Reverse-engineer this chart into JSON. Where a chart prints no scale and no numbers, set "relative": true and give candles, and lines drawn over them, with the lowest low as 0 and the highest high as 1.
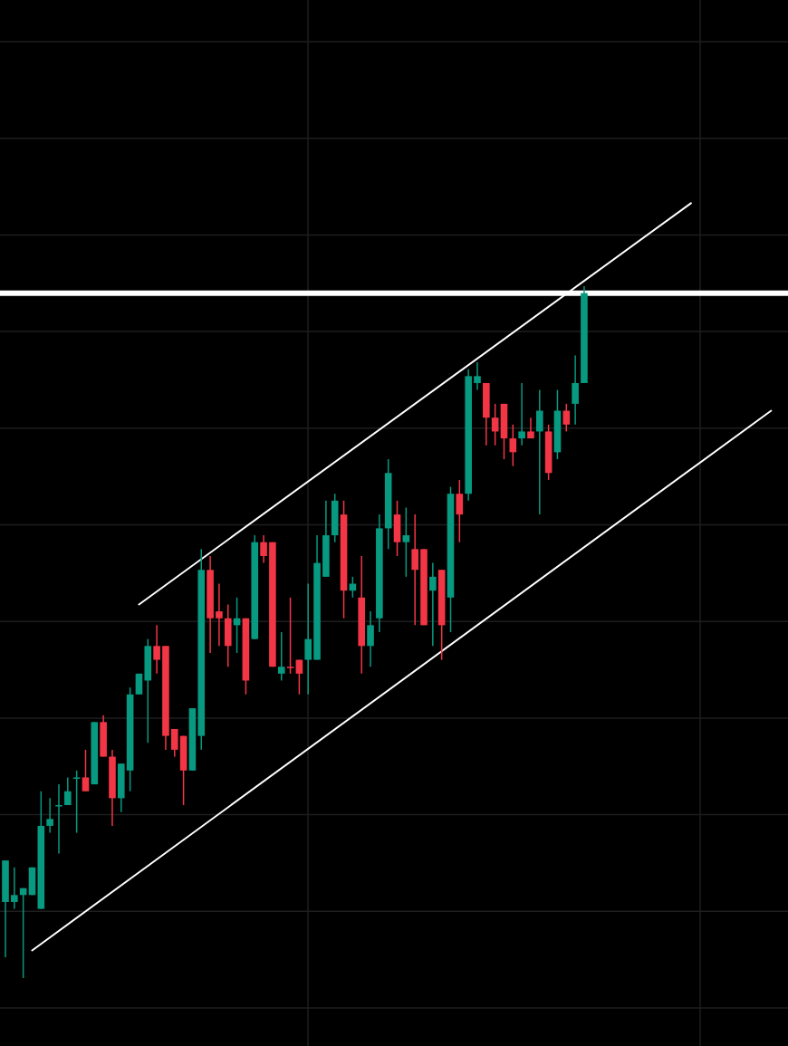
{
  "chart_data": {
    "type": "candlestick",
    "relative": true,
    "grid": true,
    "categories": [
      null,
      null,
      null,
      null,
      null,
      null,
      null,
      null,
      null,
      null,
      null,
      null,
      null,
      null,
      null,
      null,
      null,
      null,
      null,
      null,
      null,
      null,
      null,
      null,
      null,
      null,
      null,
      null,
      null,
      null,
      null,
      null,
      null,
      null,
      null,
      null,
      null,
      null,
      null,
      null,
      null,
      null,
      null,
      null,
      null,
      null,
      null,
      null,
      null,
      null,
      null,
      null,
      null,
      null,
      null,
      null,
      null,
      null,
      null,
      null,
      null,
      null,
      null,
      null,
      null,
      null,
      null,
      null,
      null,
      null,
      null,
      null,
      null,
      null,
      null,
      null,
      null,
      null,
      null,
      null,
      null,
      null,
      null,
      null,
      null,
      null,
      null
    ],
    "ohlc": [
      [
        0.11,
        0.17,
        0.03,
        0.17
      ],
      [
        0.11,
        0.16,
        0.1,
        0.12
      ],
      [
        0.12,
        0.13,
        0,
        0.13
      ],
      [
        0.12,
        0.16,
        0.12,
        0.16
      ],
      [
        0.1,
        0.27,
        0.1,
        0.22
      ],
      [
        0.22,
        0.26,
        0.21,
        0.23
      ],
      [
        0.25,
        0.28,
        0.18,
        0.25
      ],
      [
        0.25,
        0.29,
        0.25,
        0.27
      ],
      [
        0.29,
        0.3,
        0.21,
        0.29
      ],
      [
        0.29,
        0.33,
        0.27,
        0.27
      ],
      [
        0.28,
        0.37,
        0.28,
        0.37
      ],
      [
        0.37,
        0.38,
        0.32,
        0.32
      ],
      [
        0.32,
        0.33,
        0.22,
        0.26
      ],
      [
        0.26,
        0.31,
        0.24,
        0.31
      ],
      [
        0.3,
        0.42,
        0.27,
        0.41
      ],
      [
        0.41,
        0.44,
        0.41,
        0.44
      ],
      [
        0.43,
        0.49,
        0.34,
        0.48
      ],
      [
        0.48,
        0.51,
        0.44,
        0.46
      ],
      [
        0.48,
        0.48,
        0.33,
        0.35
      ],
      [
        0.36,
        0.36,
        0.32,
        0.33
      ],
      [
        0.35,
        0.35,
        0.25,
        0.3
      ],
      [
        0.3,
        0.39,
        0.3,
        0.39
      ],
      [
        0.35,
        0.62,
        0.33,
        0.59
      ],
      [
        0.59,
        0.61,
        0.47,
        0.52
      ],
      [
        0.53,
        0.57,
        0.48,
        0.52
      ],
      [
        0.52,
        0.54,
        0.45,
        0.48
      ],
      [
        0.51,
        0.55,
        0.47,
        0.52
      ],
      [
        0.52,
        0.52,
        0.41,
        0.43
      ],
      [
        0.49,
        0.64,
        0.49,
        0.63
      ],
      [
        0.63,
        0.64,
        0.6,
        0.61
      ],
      [
        0.63,
        0.63,
        0.45,
        0.45
      ],
      [
        0.44,
        0.5,
        0.43,
        0.45
      ],
      [
        0.45,
        0.55,
        0.44,
        0.45
      ],
      [
        0.46,
        0.46,
        0.41,
        0.44
      ],
      [
        0.46,
        0.57,
        0.41,
        0.49
      ],
      [
        0.46,
        0.64,
        0.46,
        0.6
      ],
      [
        0.58,
        0.69,
        0.58,
        0.64
      ],
      [
        0.64,
        0.7,
        0.63,
        0.69
      ],
      [
        0.67,
        0.69,
        0.52,
        0.56
      ],
      [
        0.56,
        0.58,
        0.55,
        0.57
      ],
      [
        0.55,
        0.61,
        0.44,
        0.48
      ],
      [
        0.48,
        0.53,
        0.45,
        0.51
      ],
      [
        0.52,
        0.67,
        0.5,
        0.65
      ],
      [
        0.65,
        0.75,
        0.62,
        0.73
      ],
      [
        0.67,
        0.69,
        0.61,
        0.63
      ],
      [
        0.63,
        0.68,
        0.58,
        0.64
      ],
      [
        0.62,
        0.67,
        0.51,
        0.59
      ],
      [
        0.62,
        0.62,
        0.51,
        0.51
      ],
      [
        0.56,
        0.6,
        0.48,
        0.58
      ],
      [
        0.59,
        0.59,
        0.46,
        0.51
      ],
      [
        0.55,
        0.71,
        0.5,
        0.7
      ],
      [
        0.7,
        0.72,
        0.63,
        0.67
      ],
      [
        0.7,
        0.88,
        0.69,
        0.87
      ],
      [
        0.86,
        0.89,
        0.85,
        0.87
      ],
      [
        0.86,
        0.86,
        0.77,
        0.81
      ],
      [
        0.81,
        0.83,
        0.77,
        0.79
      ],
      [
        0.83,
        0.83,
        0.75,
        0.78
      ],
      [
        0.78,
        0.8,
        0.74,
        0.76
      ],
      [
        0.78,
        0.86,
        0.77,
        0.79
      ],
      [
        0.79,
        0.81,
        0.78,
        0.78
      ],
      [
        0.79,
        0.85,
        0.67,
        0.82
      ],
      [
        0.79,
        0.8,
        0.72,
        0.73
      ],
      [
        0.76,
        0.85,
        0.75,
        0.82
      ],
      [
        0.82,
        0.83,
        0.79,
        0.8
      ],
      [
        0.83,
        0.9,
        0.8,
        0.86
      ],
      [
        0.86,
        1,
        0.86,
        0.99
      ],
      null,
      null,
      null,
      null,
      null,
      null,
      null,
      null,
      null,
      null,
      null,
      null,
      null,
      null,
      null,
      null,
      null,
      null,
      null,
      null,
      null
    ],
    "colors": [
      "#089981",
      "#089981",
      "#089981",
      "#089981",
      "#089981",
      "#089981",
      "#089981",
      "#089981",
      "#089981",
      "#f23645",
      "#089981",
      "#f23645",
      "#f23645",
      "#089981",
      "#089981",
      "#089981",
      "#089981",
      "#f23645",
      "#f23645",
      "#f23645",
      "#f23645",
      "#089981",
      "#089981",
      "#f23645",
      "#f23645",
      "#f23645",
      "#089981",
      "#f23645",
      "#089981",
      "#f23645",
      "#f23645",
      "#089981",
      "#f23645",
      "#f23645",
      "#089981",
      "#089981",
      "#089981",
      "#089981",
      "#f23645",
      "#089981",
      "#f23645",
      "#089981",
      "#089981",
      "#089981",
      "#f23645",
      "#089981",
      "#f23645",
      "#f23645",
      "#089981",
      "#f23645",
      "#089981",
      "#f23645",
      "#089981",
      "#089981",
      "#f23645",
      "#f23645",
      "#f23645",
      "#f23645",
      "#089981",
      "#f23645",
      "#089981",
      "#f23645",
      "#089981",
      "#f23645",
      "#089981",
      "#089981",
      null,
      null,
      null,
      null,
      null,
      null,
      null,
      null,
      null,
      null,
      null,
      null,
      null,
      null,
      null,
      null,
      null,
      null,
      null,
      null,
      null
    ],
    "series": [
      {
        "type": "line",
        "color": "#ffffff",
        "values": [
          null,
          null,
          null,
          null,
          null,
          null,
          null,
          null,
          null,
          null,
          null,
          null,
          null,
          null,
          null,
          0.54,
          null,
          null,
          null,
          null,
          null,
          null,
          null,
          null,
          null,
          null,
          null,
          null,
          null,
          null,
          null,
          null,
          null,
          null,
          null,
          null,
          null,
          null,
          null,
          null,
          null,
          null,
          null,
          null,
          null,
          null,
          null,
          null,
          null,
          null,
          null,
          null,
          null,
          null,
          null,
          null,
          null,
          null,
          null,
          null,
          null,
          null,
          null,
          null,
          null,
          null,
          null,
          null,
          null,
          null,
          null,
          null,
          null,
          null,
          null,
          null,
          null,
          1.12,
          null,
          null,
          null,
          null,
          null,
          null,
          null,
          null,
          null
        ]
      },
      {
        "type": "line",
        "color": "#ffffff",
        "values": [
          null,
          null,
          null,
          0.04,
          null,
          null,
          null,
          null,
          null,
          null,
          null,
          null,
          null,
          null,
          null,
          null,
          null,
          null,
          null,
          null,
          null,
          null,
          null,
          null,
          null,
          null,
          null,
          null,
          null,
          null,
          null,
          null,
          null,
          null,
          null,
          null,
          null,
          null,
          null,
          null,
          null,
          null,
          null,
          null,
          null,
          null,
          null,
          null,
          null,
          null,
          null,
          null,
          null,
          null,
          null,
          null,
          null,
          null,
          null,
          null,
          null,
          null,
          null,
          null,
          null,
          null,
          null,
          null,
          null,
          null,
          null,
          null,
          null,
          null,
          null,
          null,
          null,
          null,
          null,
          null,
          null,
          null,
          null,
          null,
          null,
          null,
          0.82
        ]
      }
    ],
    "ref_lines": [
      {
        "axis": "y",
        "value": 0.99,
        "color": "#ffffff"
      }
    ]
  }
}
